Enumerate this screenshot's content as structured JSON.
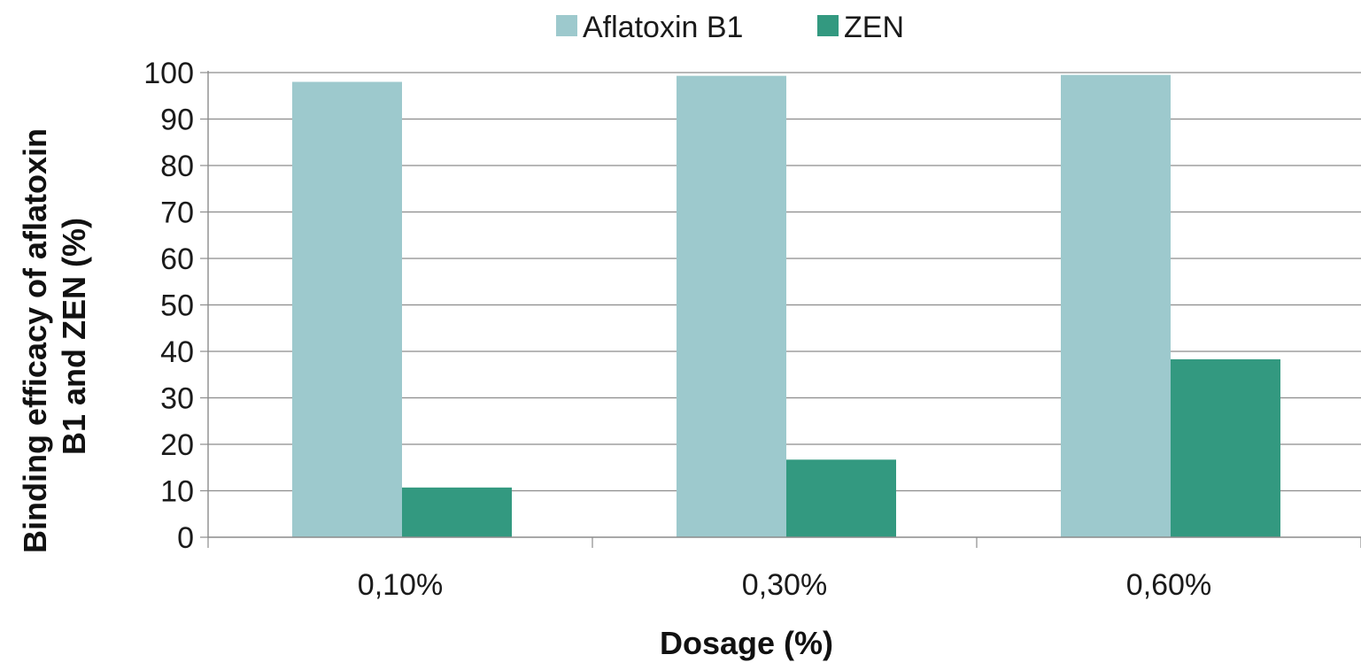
{
  "chart_data": {
    "type": "bar",
    "categories": [
      "0,10%",
      "0,30%",
      "0,60%"
    ],
    "series": [
      {
        "name": "Aflatoxin B1",
        "values": [
          98,
          99.3,
          99.5
        ],
        "color": "#9dc9cd"
      },
      {
        "name": "ZEN",
        "values": [
          10.7,
          16.7,
          38.3
        ],
        "color": "#339980"
      }
    ],
    "ylim": [
      0,
      100
    ],
    "yticks": [
      0,
      10,
      20,
      30,
      40,
      50,
      60,
      70,
      80,
      90,
      100
    ],
    "xlabel": "Dosage  (%)",
    "ylabel_lines": [
      "Binding efficacy of aflatoxin",
      "B1 and ZEN  (%)"
    ],
    "grid": true,
    "legend_position": "top-center"
  }
}
